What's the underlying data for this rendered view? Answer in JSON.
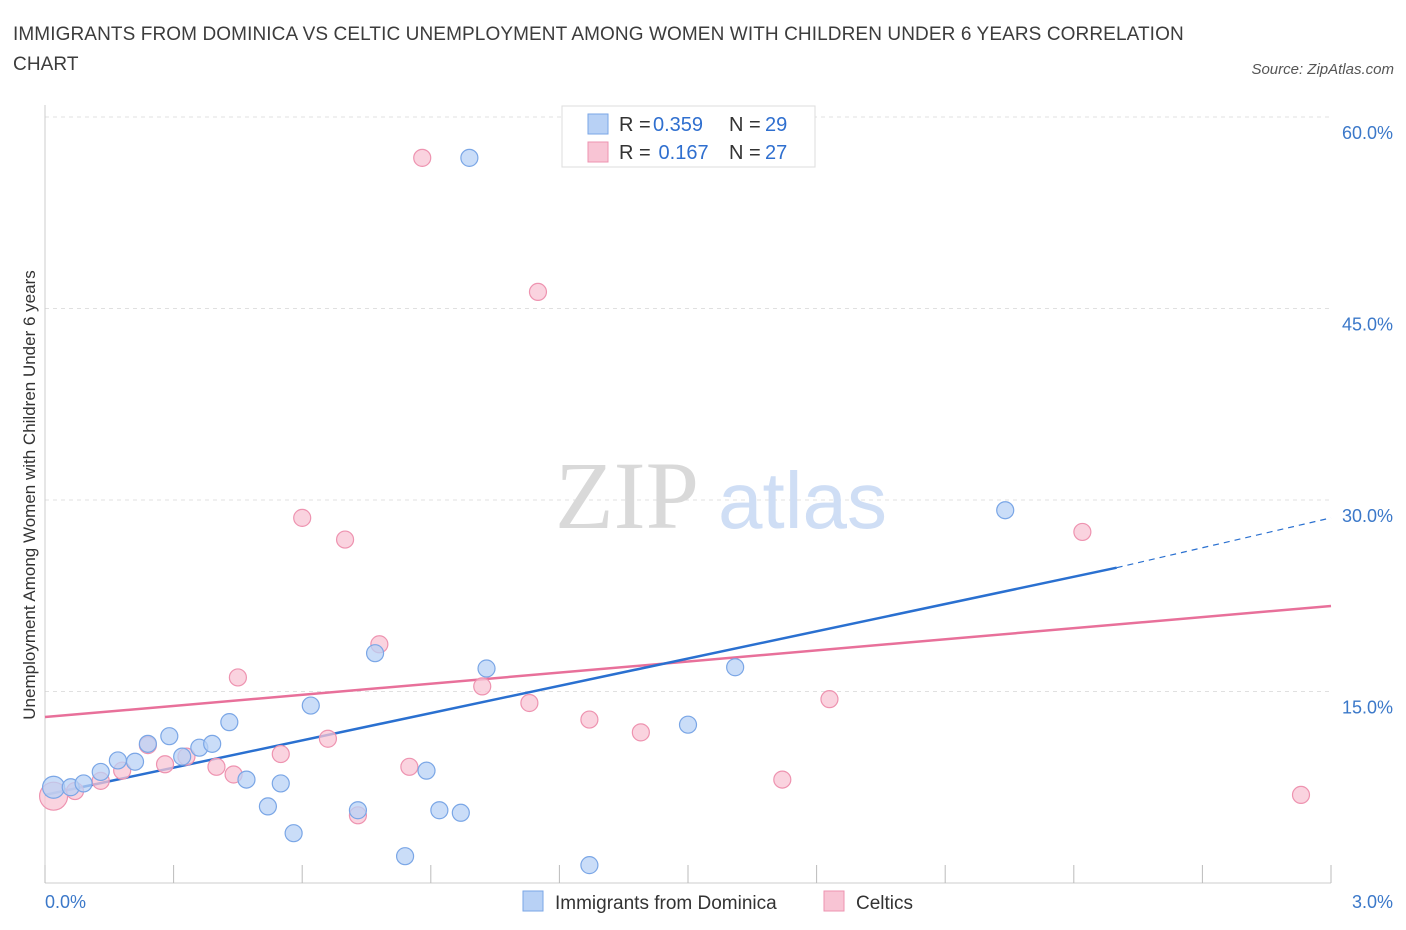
{
  "title": "IMMIGRANTS FROM DOMINICA VS CELTIC UNEMPLOYMENT AMONG WOMEN WITH CHILDREN UNDER 6 YEARS CORRELATION CHART",
  "source": "Source: ZipAtlas.com",
  "watermark": {
    "zip": "ZIP",
    "atlas": "atlas"
  },
  "colors": {
    "blue_fill": "#b8d1f5",
    "blue_stroke": "#7aa6e6",
    "blue_line": "#2a70d0",
    "pink_fill": "#f8c4d4",
    "pink_stroke": "#ee93b0",
    "pink_line": "#e8709a",
    "grid": "#e0e0e0",
    "axis_label": "#3b78c9"
  },
  "legend": {
    "rows": [
      {
        "series": "Immigrants from Dominica",
        "r_label": "R =",
        "r_value": "0.359",
        "n_label": "N =",
        "n_value": "29"
      },
      {
        "series": "Celtics",
        "r_label": "R =",
        "r_value": " 0.167",
        "n_label": "N =",
        "n_value": "27"
      }
    ]
  },
  "chart_data": {
    "type": "scatter",
    "title": "IMMIGRANTS FROM DOMINICA VS CELTIC UNEMPLOYMENT AMONG WOMEN WITH CHILDREN UNDER 6 YEARS CORRELATION CHART",
    "xlabel": "",
    "ylabel": "Unemployment Among Women with Children Under 6 years",
    "xlim": [
      0,
      3.0
    ],
    "ylim": [
      0,
      60
    ],
    "x_tick_labels": [
      "0.0%",
      "3.0%"
    ],
    "y_ticks": [
      15,
      30,
      45,
      60
    ],
    "y_tick_labels": [
      "15.0%",
      "30.0%",
      "45.0%",
      "60.0%"
    ],
    "grid": true,
    "legend_position": "top-center",
    "series": [
      {
        "name": "Immigrants from Dominica",
        "color": "#b8d1f5",
        "points": [
          [
            0.02,
            7.5
          ],
          [
            0.06,
            7.5
          ],
          [
            0.09,
            7.8
          ],
          [
            0.13,
            8.7
          ],
          [
            0.17,
            9.6
          ],
          [
            0.21,
            9.5
          ],
          [
            0.24,
            10.9
          ],
          [
            0.29,
            11.5
          ],
          [
            0.32,
            9.9
          ],
          [
            0.36,
            10.6
          ],
          [
            0.39,
            10.9
          ],
          [
            0.43,
            12.6
          ],
          [
            0.47,
            8.1
          ],
          [
            0.52,
            6.0
          ],
          [
            0.55,
            7.8
          ],
          [
            0.58,
            3.9
          ],
          [
            0.62,
            13.9
          ],
          [
            0.73,
            5.7
          ],
          [
            0.77,
            18.0
          ],
          [
            0.84,
            2.1
          ],
          [
            0.89,
            8.8
          ],
          [
            0.92,
            5.7
          ],
          [
            0.97,
            5.5
          ],
          [
            0.99,
            56.8
          ],
          [
            1.03,
            16.8
          ],
          [
            1.27,
            1.4
          ],
          [
            1.5,
            12.4
          ],
          [
            1.61,
            16.9
          ],
          [
            2.24,
            29.2
          ]
        ],
        "trend": {
          "x": [
            0.0,
            2.5
          ],
          "y": [
            6.9,
            24.7
          ],
          "dashed_to": [
            3.0,
            28.6
          ]
        }
      },
      {
        "name": "Celtics",
        "color": "#f8c4d4",
        "points": [
          [
            0.02,
            6.8
          ],
          [
            0.07,
            7.2
          ],
          [
            0.13,
            8.0
          ],
          [
            0.18,
            8.8
          ],
          [
            0.24,
            10.8
          ],
          [
            0.28,
            9.3
          ],
          [
            0.33,
            9.9
          ],
          [
            0.4,
            9.1
          ],
          [
            0.44,
            8.5
          ],
          [
            0.45,
            16.1
          ],
          [
            0.55,
            10.1
          ],
          [
            0.6,
            28.6
          ],
          [
            0.66,
            11.3
          ],
          [
            0.7,
            26.9
          ],
          [
            0.73,
            5.3
          ],
          [
            0.78,
            18.7
          ],
          [
            0.85,
            9.1
          ],
          [
            0.88,
            56.8
          ],
          [
            1.02,
            15.4
          ],
          [
            1.13,
            14.1
          ],
          [
            1.15,
            46.3
          ],
          [
            1.27,
            12.8
          ],
          [
            1.39,
            11.8
          ],
          [
            1.72,
            8.1
          ],
          [
            1.83,
            14.4
          ],
          [
            2.42,
            27.5
          ],
          [
            2.93,
            6.9
          ]
        ],
        "trend": {
          "x": [
            0.0,
            3.0
          ],
          "y": [
            13.0,
            21.7
          ]
        }
      }
    ]
  }
}
